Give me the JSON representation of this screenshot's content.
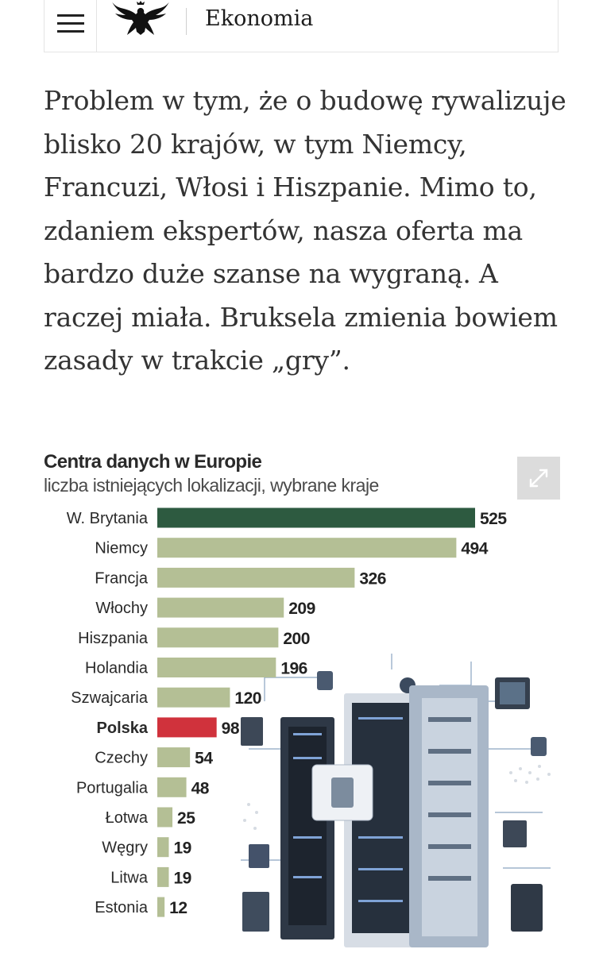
{
  "header": {
    "section": "Ekonomia",
    "menu_icon": "hamburger-menu-icon",
    "logo_icon": "eagle-logo-icon"
  },
  "article": {
    "paragraph": "Problem w tym, że o budowę rywalizuje blisko 20 krajów, w tym Niemcy, Francuzi, Włosi i Hiszpanie. Mimo to, zdaniem ekspertów, nasza oferta ma bardzo duże szanse na wygraną. A raczej miała. Bruksela zmienia bowiem zasady w trakcie „gry”."
  },
  "chart_data": {
    "type": "bar",
    "orientation": "horizontal",
    "title": "Centra danych w Europie",
    "subtitle": "liczba istniejących lokalizacji, wybrane kraje",
    "categories": [
      "W. Brytania",
      "Niemcy",
      "Francja",
      "Włochy",
      "Hiszpania",
      "Holandia",
      "Szwajcaria",
      "Polska",
      "Czechy",
      "Portugalia",
      "Łotwa",
      "Węgry",
      "Litwa",
      "Estonia"
    ],
    "values": [
      525,
      494,
      326,
      209,
      200,
      196,
      120,
      98,
      54,
      48,
      25,
      19,
      19,
      12
    ],
    "highlight": [
      "W. Brytania",
      "Polska"
    ],
    "xlim": [
      0,
      525
    ],
    "grid": false,
    "data_labels": true,
    "colors": {
      "default": "#b4bf95",
      "W. Brytania": "#2d5a40",
      "Polska": "#d0323c"
    }
  },
  "chart_ui": {
    "expand_icon": "expand-arrows-icon"
  }
}
